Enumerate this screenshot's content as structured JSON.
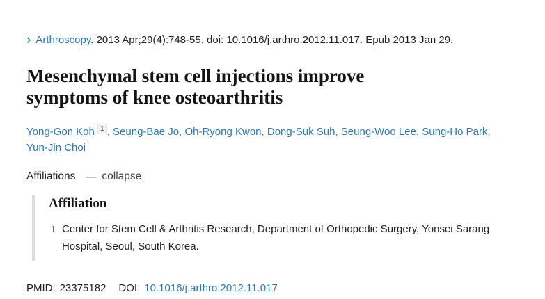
{
  "colors": {
    "link_blue": "#2878b9",
    "text_dark": "#212121",
    "title_dark": "#141414",
    "bar_gray": "#dcdcdc"
  },
  "citation": {
    "chevron": "›",
    "journal": "Arthroscopy",
    "rest": ". 2013 Apr;29(4):748-55. doi: 10.1016/j.arthro.2012.11.017. Epub 2013 Jan 29."
  },
  "title": "Mesenchymal stem cell injections improve symptoms of knee osteoarthritis",
  "authors": [
    {
      "name": "Yong-Gon Koh",
      "sup": "1"
    },
    {
      "name": "Seung-Bae Jo"
    },
    {
      "name": "Oh-Ryong Kwon"
    },
    {
      "name": "Dong-Suk Suh"
    },
    {
      "name": "Seung-Woo Lee"
    },
    {
      "name": "Sung-Ho Park"
    },
    {
      "name": "Yun-Jin Choi"
    }
  ],
  "affiliations_bar": {
    "label": "Affiliations",
    "toggle_icon": "—",
    "toggle_label": "collapse"
  },
  "affiliation_panel": {
    "heading": "Affiliation",
    "items": [
      {
        "number": "1",
        "text": "Center for Stem Cell & Arthritis Research, Department of Orthopedic Surgery, Yonsei Sarang Hospital, Seoul, South Korea."
      }
    ]
  },
  "identifiers": {
    "pmid_label": "PMID:",
    "pmid": "23375182",
    "doi_label": "DOI:",
    "doi": "10.1016/j.arthro.2012.11.017"
  }
}
